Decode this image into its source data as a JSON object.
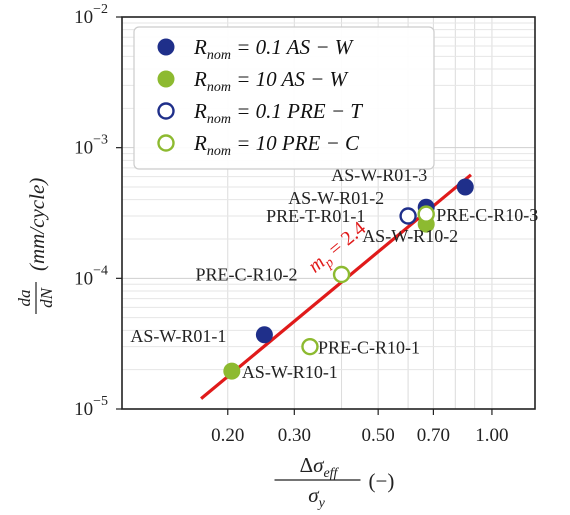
{
  "chart_data": {
    "type": "scatter",
    "x_scale": "log",
    "y_scale": "log",
    "xlim": [
      0.105,
      1.3
    ],
    "ylim": [
      1e-05,
      0.01
    ],
    "grid": true,
    "legend_placement": "top-left",
    "x_tick_values": [
      0.2,
      0.3,
      0.5,
      0.7,
      1.0
    ],
    "x_tick_labels": [
      "0.20",
      "0.30",
      "0.50",
      "0.70",
      "1.00"
    ],
    "y_tick_values": [
      1e-05,
      0.0001,
      0.001,
      0.01
    ],
    "y_tick_labels": [
      {
        "base": "10",
        "exp": "−5"
      },
      {
        "base": "10",
        "exp": "−4"
      },
      {
        "base": "10",
        "exp": "−3"
      },
      {
        "base": "10",
        "exp": "−2"
      }
    ],
    "xlabel": {
      "delta": "Δ",
      "sigma": "σ",
      "num_sub": "eff",
      "den_sub": "y",
      "unit": "(−)"
    },
    "ylabel": {
      "num": "da",
      "den": "dN",
      "unit": "(mm/cycle)"
    },
    "series": [
      {
        "name": "R_nom = 0.1 AS − W",
        "legend_parts": [
          "R",
          "nom",
          " = 0.1 AS − W"
        ],
        "color": "#1f2f8a",
        "marker": "filled",
        "points": [
          {
            "label": "AS-W-R01-1",
            "x": 0.25,
            "y": 3.7e-05
          },
          {
            "label": "AS-W-R01-2",
            "x": 0.67,
            "y": 0.00035
          },
          {
            "label": "AS-W-R01-3",
            "x": 0.85,
            "y": 0.0005
          }
        ]
      },
      {
        "name": "R_nom = 10 AS − W",
        "legend_parts": [
          "R",
          "nom",
          " = 10 AS − W"
        ],
        "color": "#8dba30",
        "marker": "filled",
        "points": [
          {
            "label": "AS-W-R10-1",
            "x": 0.205,
            "y": 1.95e-05
          },
          {
            "label": "AS-W-R10-2",
            "x": 0.67,
            "y": 0.00026
          }
        ]
      },
      {
        "name": "R_nom = 0.1 PRE − T",
        "legend_parts": [
          "R",
          "nom",
          " = 0.1 PRE − T"
        ],
        "color": "#1f2f8a",
        "marker": "hollow",
        "points": [
          {
            "label": "PRE-T-R01-1",
            "x": 0.6,
            "y": 0.0003
          }
        ]
      },
      {
        "name": "R_nom = 10 PRE − C",
        "legend_parts": [
          "R",
          "nom",
          " = 10 PRE − C"
        ],
        "color": "#8dba30",
        "marker": "hollow",
        "points": [
          {
            "label": "PRE-C-R10-1",
            "x": 0.33,
            "y": 3e-05
          },
          {
            "label": "PRE-C-R10-2",
            "x": 0.4,
            "y": 0.000107
          },
          {
            "label": "PRE-C-R10-3",
            "x": 0.67,
            "y": 0.00031
          }
        ]
      }
    ],
    "fit_line": {
      "color": "#e01a1a",
      "x_range": [
        0.17,
        0.88
      ],
      "y_range": [
        1.2e-05,
        0.00062
      ],
      "label_symbol": "m",
      "label_sub": "p",
      "label_value": " = 2.4"
    }
  }
}
